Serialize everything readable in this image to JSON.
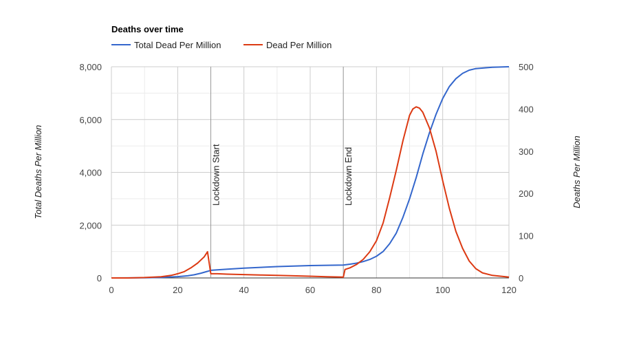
{
  "chart_data": {
    "type": "line",
    "title": "Deaths over time",
    "x_ticks": [
      0,
      20,
      40,
      60,
      80,
      100,
      120
    ],
    "xlim": [
      0,
      120
    ],
    "y_left": {
      "label": "Total Deaths Per Million",
      "ylim": [
        0,
        8000
      ],
      "ticks": [
        "0",
        "2,000",
        "4,000",
        "6,000",
        "8,000"
      ]
    },
    "y_right": {
      "label": "Deaths Per Million",
      "ylim": [
        0,
        500
      ],
      "ticks": [
        "0",
        "100",
        "200",
        "300",
        "400",
        "500"
      ]
    },
    "annotations": [
      {
        "x": 30,
        "label": "Lockdown Start"
      },
      {
        "x": 70,
        "label": "Lockdown End"
      }
    ],
    "series": [
      {
        "name": "Total Dead Per Million",
        "axis": "left",
        "color": "#3366cc",
        "x": [
          0,
          10,
          15,
          20,
          23,
          25,
          27,
          29,
          30,
          35,
          40,
          45,
          50,
          55,
          60,
          65,
          70,
          72,
          74,
          76,
          78,
          80,
          82,
          84,
          86,
          88,
          90,
          92,
          94,
          96,
          98,
          100,
          102,
          104,
          106,
          108,
          110,
          115,
          120
        ],
        "values": [
          0,
          5,
          20,
          50,
          80,
          120,
          180,
          250,
          290,
          330,
          370,
          400,
          430,
          450,
          470,
          480,
          490,
          520,
          560,
          620,
          700,
          820,
          1000,
          1300,
          1700,
          2300,
          3000,
          3800,
          4700,
          5500,
          6200,
          6800,
          7250,
          7550,
          7750,
          7870,
          7930,
          7980,
          8000
        ]
      },
      {
        "name": "Dead Per Million",
        "axis": "right",
        "color": "#dc3912",
        "x": [
          0,
          5,
          10,
          15,
          18,
          20,
          22,
          24,
          26,
          28,
          29,
          30,
          32,
          35,
          40,
          45,
          50,
          55,
          60,
          65,
          70,
          70.5,
          72,
          74,
          76,
          78,
          80,
          82,
          84,
          86,
          88,
          90,
          91,
          92,
          93,
          94,
          96,
          98,
          100,
          102,
          104,
          106,
          108,
          110,
          112,
          115,
          120
        ],
        "values": [
          0,
          0,
          1,
          3,
          6,
          10,
          15,
          24,
          35,
          50,
          62,
          10,
          10,
          9,
          8,
          7,
          6,
          5,
          4,
          3,
          2,
          20,
          24,
          32,
          44,
          62,
          88,
          130,
          190,
          255,
          325,
          385,
          400,
          405,
          402,
          392,
          355,
          300,
          230,
          165,
          110,
          70,
          40,
          22,
          12,
          6,
          2
        ]
      }
    ]
  }
}
